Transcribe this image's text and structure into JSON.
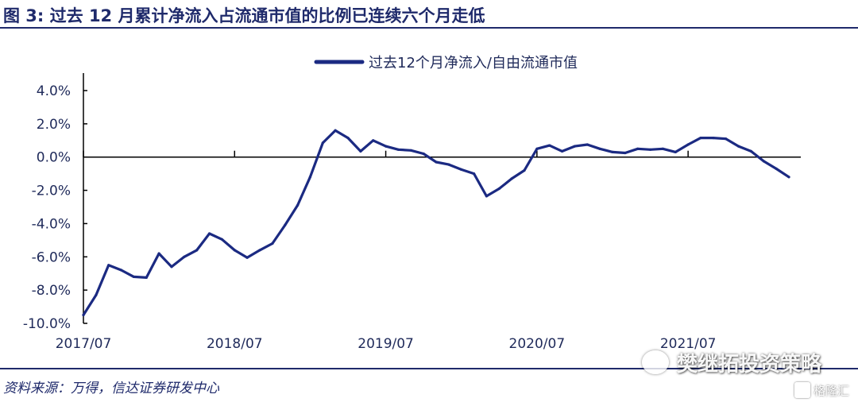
{
  "figure": {
    "title": "图  3:  过去 12 月累计净流入占流通市值的比例已连续六个月走低"
  },
  "source": "资料来源：万得，信达证券研发中心",
  "watermark": {
    "text": "樊继拓投资策略",
    "badge": "格隆汇"
  },
  "colors": {
    "accent": "#1f2a6b",
    "series": "#1b2a82"
  },
  "chart_data": {
    "type": "line",
    "title": "",
    "xlabel": "",
    "ylabel": "",
    "ylim": [
      -10,
      4
    ],
    "yticks": [
      -10,
      -8,
      -6,
      -4,
      -2,
      0,
      2,
      4
    ],
    "ytick_labels": [
      "-10.0%",
      "-8.0%",
      "-6.0%",
      "-4.0%",
      "-2.0%",
      "0.0%",
      "2.0%",
      "4.0%"
    ],
    "x_tick_labels": [
      "2017/07",
      "2018/07",
      "2019/07",
      "2020/07",
      "2021/07"
    ],
    "grid": false,
    "legend_position": "top-right",
    "x": [
      "2017/07",
      "2017/08",
      "2017/09",
      "2017/10",
      "2017/11",
      "2017/12",
      "2018/01",
      "2018/02",
      "2018/03",
      "2018/04",
      "2018/05",
      "2018/06",
      "2018/07",
      "2018/08",
      "2018/09",
      "2018/10",
      "2018/11",
      "2018/12",
      "2019/01",
      "2019/02",
      "2019/03",
      "2019/04",
      "2019/05",
      "2019/06",
      "2019/07",
      "2019/08",
      "2019/09",
      "2019/10",
      "2019/11",
      "2019/12",
      "2020/01",
      "2020/02",
      "2020/03",
      "2020/04",
      "2020/05",
      "2020/06",
      "2020/07",
      "2020/08",
      "2020/09",
      "2020/10",
      "2020/11",
      "2020/12",
      "2021/01",
      "2021/02",
      "2021/03",
      "2021/04",
      "2021/05",
      "2021/06",
      "2021/07",
      "2021/08",
      "2021/09",
      "2021/10",
      "2021/11",
      "2021/12",
      "2022/01",
      "2022/02",
      "2022/03"
    ],
    "series": [
      {
        "name": "过去12个月净流入/自由流通市值",
        "values": [
          -9.5,
          -8.3,
          -6.5,
          -6.8,
          -7.2,
          -7.25,
          -5.8,
          -6.6,
          -6.0,
          -5.6,
          -4.6,
          -4.95,
          -5.6,
          -6.05,
          -5.6,
          -5.2,
          -4.1,
          -2.9,
          -1.2,
          0.85,
          1.6,
          1.15,
          0.35,
          1.0,
          0.65,
          0.45,
          0.4,
          0.2,
          -0.3,
          -0.45,
          -0.75,
          -1.0,
          -2.35,
          -1.9,
          -1.3,
          -0.8,
          0.5,
          0.7,
          0.35,
          0.65,
          0.75,
          0.5,
          0.3,
          0.25,
          0.5,
          0.45,
          0.5,
          0.3,
          0.75,
          1.15,
          1.15,
          1.1,
          0.65,
          0.35,
          -0.25,
          -0.7,
          -1.2
        ]
      }
    ]
  }
}
